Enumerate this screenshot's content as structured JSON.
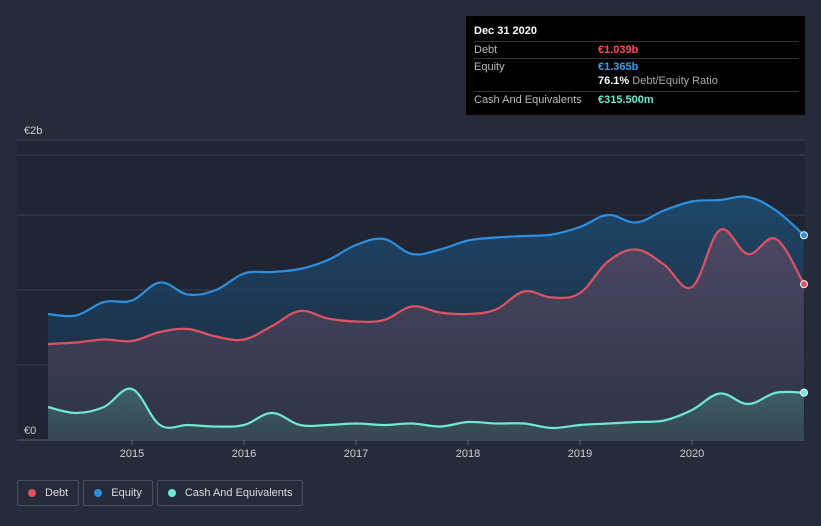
{
  "tooltip": {
    "date": "Dec 31 2020",
    "debt_label": "Debt",
    "debt_value": "€1.039b",
    "equity_label": "Equity",
    "equity_value": "€1.365b",
    "ratio_value": "76.1%",
    "ratio_label": "Debt/Equity Ratio",
    "cash_label": "Cash And Equivalents",
    "cash_value": "€315.500m"
  },
  "legend": [
    {
      "label": "Debt",
      "color": "#e05263"
    },
    {
      "label": "Equity",
      "color": "#2e8fe0"
    },
    {
      "label": "Cash And Equivalents",
      "color": "#6fe8d4"
    }
  ],
  "chart_data": {
    "type": "area",
    "title": "",
    "xlabel": "",
    "ylabel": "",
    "ylim": [
      0,
      2
    ],
    "y_unit": "€b",
    "y_tick_labels": [
      {
        "value": 2,
        "label": "€2b"
      },
      {
        "value": 0,
        "label": "€0"
      }
    ],
    "x_range": [
      2014.25,
      2021.0
    ],
    "x_ticks": [
      2015,
      2016,
      2017,
      2018,
      2019,
      2020
    ],
    "series": [
      {
        "name": "Equity",
        "color": "#2e8fe0",
        "x": [
          2014.25,
          2014.5,
          2014.75,
          2015.0,
          2015.25,
          2015.5,
          2015.75,
          2016.0,
          2016.25,
          2016.5,
          2016.75,
          2017.0,
          2017.25,
          2017.5,
          2017.75,
          2018.0,
          2018.25,
          2018.5,
          2018.75,
          2019.0,
          2019.25,
          2019.5,
          2019.75,
          2020.0,
          2020.25,
          2020.5,
          2020.75,
          2021.0
        ],
        "values": [
          0.84,
          0.83,
          0.92,
          0.93,
          1.05,
          0.97,
          1.0,
          1.11,
          1.12,
          1.14,
          1.2,
          1.3,
          1.34,
          1.24,
          1.27,
          1.33,
          1.35,
          1.36,
          1.37,
          1.42,
          1.5,
          1.45,
          1.53,
          1.59,
          1.6,
          1.62,
          1.53,
          1.365
        ]
      },
      {
        "name": "Debt",
        "color": "#e05263",
        "x": [
          2014.25,
          2014.5,
          2014.75,
          2015.0,
          2015.25,
          2015.5,
          2015.75,
          2016.0,
          2016.25,
          2016.5,
          2016.75,
          2017.0,
          2017.25,
          2017.5,
          2017.75,
          2018.0,
          2018.25,
          2018.5,
          2018.75,
          2019.0,
          2019.25,
          2019.5,
          2019.75,
          2020.0,
          2020.25,
          2020.5,
          2020.75,
          2021.0
        ],
        "values": [
          0.64,
          0.65,
          0.67,
          0.66,
          0.72,
          0.74,
          0.69,
          0.67,
          0.76,
          0.86,
          0.81,
          0.79,
          0.8,
          0.89,
          0.85,
          0.84,
          0.87,
          0.99,
          0.95,
          0.98,
          1.19,
          1.27,
          1.17,
          1.02,
          1.4,
          1.24,
          1.34,
          1.039
        ]
      },
      {
        "name": "Cash And Equivalents",
        "color": "#6fe8d4",
        "x": [
          2014.25,
          2014.5,
          2014.75,
          2015.0,
          2015.25,
          2015.5,
          2015.75,
          2016.0,
          2016.25,
          2016.5,
          2016.75,
          2017.0,
          2017.25,
          2017.5,
          2017.75,
          2018.0,
          2018.25,
          2018.5,
          2018.75,
          2019.0,
          2019.25,
          2019.5,
          2019.75,
          2020.0,
          2020.25,
          2020.5,
          2020.75,
          2021.0
        ],
        "values": [
          0.22,
          0.18,
          0.22,
          0.34,
          0.1,
          0.1,
          0.09,
          0.1,
          0.18,
          0.1,
          0.1,
          0.11,
          0.1,
          0.11,
          0.09,
          0.12,
          0.11,
          0.11,
          0.08,
          0.1,
          0.11,
          0.12,
          0.13,
          0.2,
          0.31,
          0.24,
          0.315,
          0.3155
        ]
      }
    ]
  }
}
